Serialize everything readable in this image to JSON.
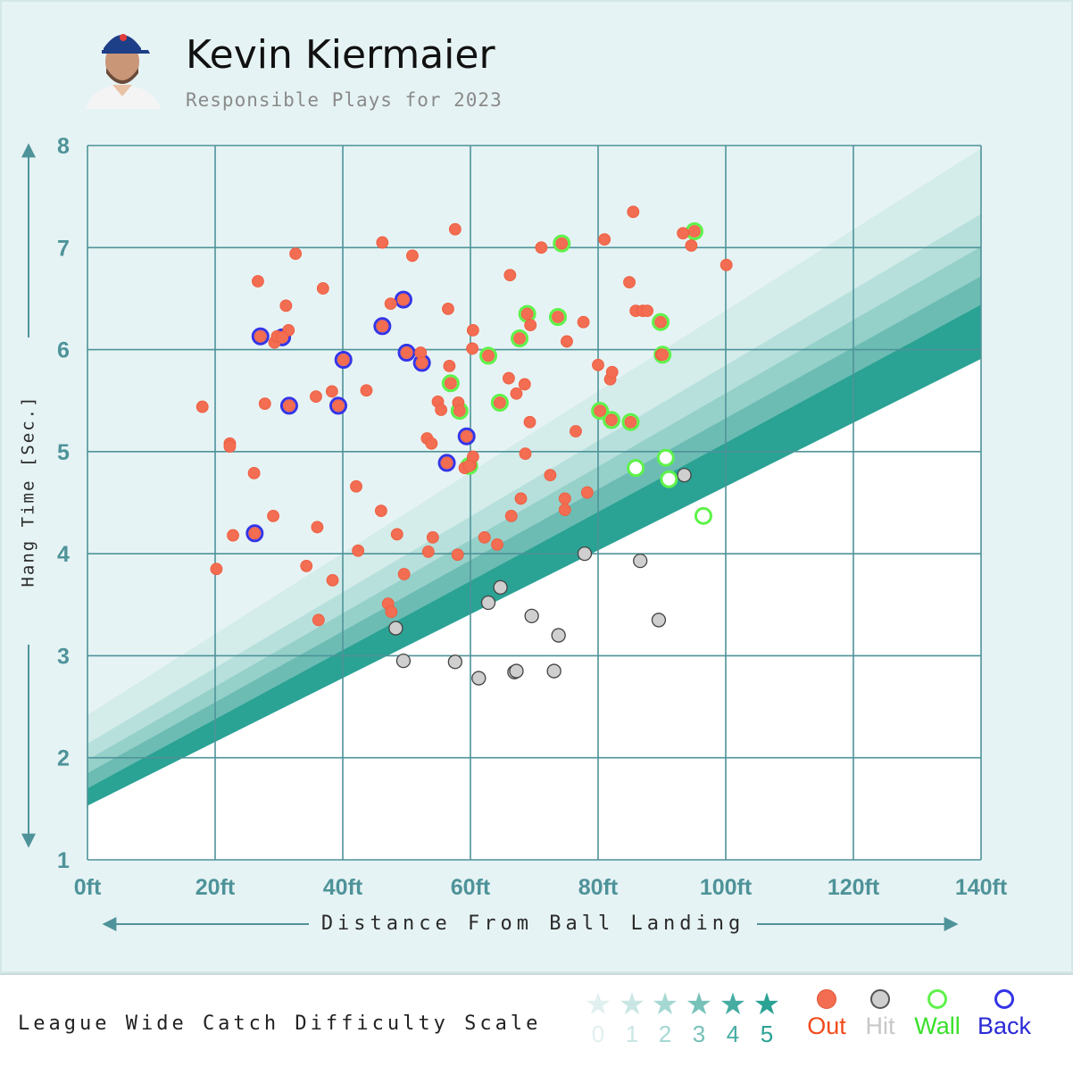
{
  "header": {
    "player_name": "Kevin Kiermaier",
    "subtitle": "Responsible Plays for 2023"
  },
  "colors": {
    "panel_bg": "#e6f3f4",
    "grid": "#4e9399",
    "tick_label": "#4e9399",
    "out_fill": "#f26d52",
    "hit_fill": "#cfcfcf",
    "wall_ring": "#5ef24a",
    "back_ring": "#3434e6",
    "band_colors": [
      "#d4ecea",
      "#b7e0dc",
      "#95d0c9",
      "#6cbcb4",
      "#46aca2",
      "#2aa294"
    ]
  },
  "chart_data": {
    "type": "scatter",
    "xlabel": "Distance From Ball Landing",
    "ylabel": "Hang Time [Sec.]",
    "xlim": [
      0,
      140
    ],
    "ylim": [
      1,
      8
    ],
    "x_ticks": [
      "0ft",
      "20ft",
      "40ft",
      "60ft",
      "80ft",
      "100ft",
      "120ft",
      "140ft"
    ],
    "x_tick_values": [
      0,
      20,
      40,
      60,
      80,
      100,
      120,
      140
    ],
    "y_ticks": [
      "1",
      "2",
      "3",
      "4",
      "5",
      "6",
      "7",
      "8"
    ],
    "y_tick_values": [
      1,
      2,
      3,
      4,
      5,
      6,
      7,
      8
    ],
    "grid": true,
    "difficulty_bands": [
      {
        "level": 0,
        "y_at_0": 2.42,
        "y_at_140": 7.97
      },
      {
        "level": 1,
        "y_at_0": 2.14,
        "y_at_140": 7.33
      },
      {
        "level": 2,
        "y_at_0": 1.98,
        "y_at_140": 7.01
      },
      {
        "level": 3,
        "y_at_0": 1.85,
        "y_at_140": 6.72
      },
      {
        "level": 4,
        "y_at_0": 1.7,
        "y_at_140": 6.44
      },
      {
        "level": 5,
        "y_at_0": 1.53,
        "y_at_140": 5.91
      }
    ],
    "series": [
      {
        "name": "Out",
        "points": [
          [
            18,
            5.44
          ],
          [
            20.2,
            3.85
          ],
          [
            22.3,
            5.08
          ],
          [
            22.3,
            5.05
          ],
          [
            22.8,
            4.18
          ],
          [
            26.1,
            4.79
          ],
          [
            26.7,
            6.67
          ],
          [
            27.8,
            5.47
          ],
          [
            29.1,
            4.37
          ],
          [
            29.3,
            6.07
          ],
          [
            29.7,
            6.13
          ],
          [
            31.1,
            6.43
          ],
          [
            31.5,
            6.19
          ],
          [
            32.6,
            6.94
          ],
          [
            34.3,
            3.88
          ],
          [
            35.8,
            5.54
          ],
          [
            36,
            4.26
          ],
          [
            36.2,
            3.35
          ],
          [
            36.9,
            6.6
          ],
          [
            38.3,
            5.59
          ],
          [
            38.4,
            3.74
          ],
          [
            42.1,
            4.66
          ],
          [
            42.4,
            4.03
          ],
          [
            43.7,
            5.6
          ],
          [
            46,
            4.42
          ],
          [
            46.2,
            7.05
          ],
          [
            47.1,
            3.51
          ],
          [
            47.5,
            6.45
          ],
          [
            47.6,
            3.43
          ],
          [
            48.5,
            4.19
          ],
          [
            49.6,
            3.8
          ],
          [
            50.9,
            6.92
          ],
          [
            52.2,
            5.97
          ],
          [
            53.2,
            5.13
          ],
          [
            53.4,
            4.02
          ],
          [
            53.9,
            5.08
          ],
          [
            54.1,
            4.16
          ],
          [
            54.9,
            5.49
          ],
          [
            55.4,
            5.41
          ],
          [
            56.5,
            6.4
          ],
          [
            56.7,
            5.84
          ],
          [
            57.6,
            7.18
          ],
          [
            58,
            3.99
          ],
          [
            58.1,
            5.48
          ],
          [
            59.1,
            4.84
          ],
          [
            60,
            4.87
          ],
          [
            60.3,
            6.01
          ],
          [
            60.4,
            4.95
          ],
          [
            60.4,
            6.19
          ],
          [
            62.2,
            4.16
          ],
          [
            64.2,
            4.09
          ],
          [
            66,
            5.72
          ],
          [
            66.2,
            6.73
          ],
          [
            66.4,
            4.37
          ],
          [
            67.2,
            5.57
          ],
          [
            67.9,
            4.54
          ],
          [
            68.5,
            5.66
          ],
          [
            68.6,
            4.98
          ],
          [
            69.3,
            5.29
          ],
          [
            69.4,
            6.24
          ],
          [
            71.1,
            7.0
          ],
          [
            72.5,
            4.77
          ],
          [
            74.8,
            4.54
          ],
          [
            74.8,
            4.43
          ],
          [
            75.1,
            6.08
          ],
          [
            76.5,
            5.2
          ],
          [
            77.7,
            6.27
          ],
          [
            78.3,
            4.6
          ],
          [
            80,
            5.85
          ],
          [
            81,
            7.08
          ],
          [
            81.9,
            5.71
          ],
          [
            82.2,
            5.78
          ],
          [
            84.9,
            6.66
          ],
          [
            85.5,
            7.35
          ],
          [
            85.9,
            6.38
          ],
          [
            87,
            6.38
          ],
          [
            87.7,
            6.38
          ],
          [
            89.9,
            5.95
          ],
          [
            93.3,
            7.14
          ],
          [
            94.6,
            7.02
          ],
          [
            100.1,
            6.83
          ],
          [
            30.5,
            6.12
          ],
          [
            27.1,
            6.13
          ],
          [
            26.2,
            4.2
          ],
          [
            31.6,
            5.45
          ],
          [
            39.3,
            5.45
          ],
          [
            40.1,
            5.9
          ],
          [
            46.2,
            6.23
          ],
          [
            49.5,
            6.49
          ],
          [
            50,
            5.97
          ],
          [
            52.4,
            5.87
          ],
          [
            56.3,
            4.89
          ],
          [
            59.4,
            5.15
          ],
          [
            56.9,
            5.67
          ],
          [
            58.3,
            5.4
          ],
          [
            59.8,
            4.86
          ],
          [
            62.8,
            5.94
          ],
          [
            64.6,
            5.48
          ],
          [
            67.7,
            6.11
          ],
          [
            68.9,
            6.35
          ],
          [
            73.7,
            6.32
          ],
          [
            74.3,
            7.04
          ],
          [
            80.3,
            5.4
          ],
          [
            82.1,
            5.31
          ],
          [
            85.1,
            5.29
          ],
          [
            89.8,
            6.27
          ],
          [
            90.1,
            5.95
          ],
          [
            95.1,
            7.16
          ]
        ]
      },
      {
        "name": "Hit",
        "points": [
          [
            48.3,
            3.27
          ],
          [
            49.5,
            2.95
          ],
          [
            57.6,
            2.94
          ],
          [
            61.3,
            2.78
          ],
          [
            62.8,
            3.52
          ],
          [
            64.7,
            3.67
          ],
          [
            66.9,
            2.84
          ],
          [
            67.2,
            2.85
          ],
          [
            69.6,
            3.39
          ],
          [
            73.1,
            2.85
          ],
          [
            73.8,
            3.2
          ],
          [
            77.9,
            4.0
          ],
          [
            86.6,
            3.93
          ],
          [
            89.5,
            3.35
          ],
          [
            93.5,
            4.77
          ]
        ]
      },
      {
        "name": "Wall",
        "points": [
          [
            56.9,
            5.67
          ],
          [
            58.3,
            5.4
          ],
          [
            59.8,
            4.86
          ],
          [
            62.8,
            5.94
          ],
          [
            64.6,
            5.48
          ],
          [
            67.7,
            6.11
          ],
          [
            68.9,
            6.35
          ],
          [
            73.7,
            6.32
          ],
          [
            74.3,
            7.04
          ],
          [
            80.3,
            5.4
          ],
          [
            82.1,
            5.31
          ],
          [
            85.1,
            5.29
          ],
          [
            85.9,
            4.84
          ],
          [
            89.8,
            6.27
          ],
          [
            90.1,
            5.95
          ],
          [
            90.6,
            4.94
          ],
          [
            91.1,
            4.73
          ],
          [
            95.1,
            7.16
          ],
          [
            96.5,
            4.37
          ]
        ]
      },
      {
        "name": "Back",
        "points": [
          [
            27.1,
            6.13
          ],
          [
            30.5,
            6.12
          ],
          [
            26.2,
            4.2
          ],
          [
            31.6,
            5.45
          ],
          [
            39.3,
            5.45
          ],
          [
            40.1,
            5.9
          ],
          [
            46.2,
            6.23
          ],
          [
            49.5,
            6.49
          ],
          [
            50,
            5.97
          ],
          [
            52.4,
            5.87
          ],
          [
            56.3,
            4.89
          ],
          [
            59.4,
            5.15
          ]
        ]
      }
    ]
  },
  "legend": {
    "scale_title": "League Wide Catch Difficulty Scale",
    "scale": [
      {
        "label": "0",
        "color": "#e0f0ef"
      },
      {
        "label": "1",
        "color": "#c8e6e3"
      },
      {
        "label": "2",
        "color": "#a5d8d2"
      },
      {
        "label": "3",
        "color": "#76c1b8"
      },
      {
        "label": "4",
        "color": "#46aca2"
      },
      {
        "label": "5",
        "color": "#2aa294"
      }
    ],
    "keys": [
      {
        "label": "Out",
        "color": "#f24a1c"
      },
      {
        "label": "Hit",
        "color": "#c8c8c8"
      },
      {
        "label": "Wall",
        "color": "#39e02a"
      },
      {
        "label": "Back",
        "color": "#2a2ad6"
      }
    ]
  }
}
